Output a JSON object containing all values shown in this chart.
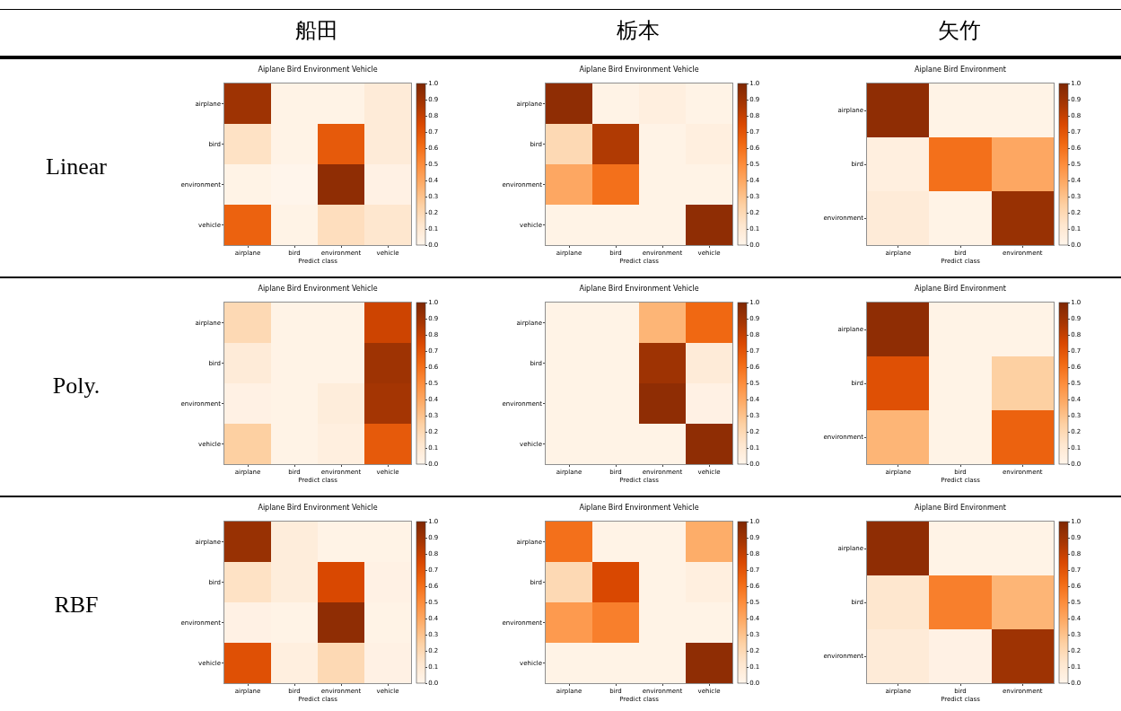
{
  "chart_data": [
    {
      "type": "other",
      "categories": [
        "船田",
        "栃本",
        "矢竹"
      ],
      "y_categories": [
        "Linear",
        "Poly.",
        "RBF"
      ]
    },
    {
      "type": "heatmap",
      "title": "Aiplane Bird Environment Vehicle",
      "xlabel": "Predict class",
      "categories": [
        "airplane",
        "bird",
        "environment",
        "vehicle"
      ],
      "y_categories": [
        "airplane",
        "bird",
        "environment",
        "vehicle"
      ],
      "cells": [
        [
          0.9,
          0.02,
          0.02,
          0.08
        ],
        [
          0.15,
          0.02,
          0.68,
          0.08
        ],
        [
          0.02,
          0.0,
          0.95,
          0.03
        ],
        [
          0.65,
          0.02,
          0.17,
          0.12
        ]
      ],
      "clim": [
        0,
        1
      ],
      "cticks": [
        {
          "value": 0,
          "label": "0.0"
        },
        {
          "value": 0.1,
          "label": "0.1"
        },
        {
          "value": 0.2,
          "label": "0.2"
        },
        {
          "value": 0.3,
          "label": "0.3"
        },
        {
          "value": 0.4,
          "label": "0.4"
        },
        {
          "value": 0.5,
          "label": "0.5"
        },
        {
          "value": 0.6,
          "label": "0.6"
        },
        {
          "value": 0.7,
          "label": "0.7"
        },
        {
          "value": 0.8,
          "label": "0.8"
        },
        {
          "value": 0.9,
          "label": "0.9"
        },
        {
          "value": 1,
          "label": "1.0"
        }
      ]
    },
    {
      "type": "heatmap",
      "title": "Aiplane Bird Environment Vehicle",
      "xlabel": "Predict class",
      "categories": [
        "airplane",
        "bird",
        "environment",
        "vehicle"
      ],
      "y_categories": [
        "airplane",
        "bird",
        "environment",
        "vehicle"
      ],
      "cells": [
        [
          0.95,
          0.02,
          0.05,
          0.02
        ],
        [
          0.2,
          0.85,
          0.02,
          0.05
        ],
        [
          0.4,
          0.6,
          0.02,
          0.02
        ],
        [
          0.02,
          0.02,
          0.02,
          0.95
        ]
      ],
      "clim": [
        0,
        1
      ],
      "cticks": [
        {
          "value": 0,
          "label": "0.0"
        },
        {
          "value": 0.1,
          "label": "0.1"
        },
        {
          "value": 0.2,
          "label": "0.2"
        },
        {
          "value": 0.3,
          "label": "0.3"
        },
        {
          "value": 0.4,
          "label": "0.4"
        },
        {
          "value": 0.5,
          "label": "0.5"
        },
        {
          "value": 0.6,
          "label": "0.6"
        },
        {
          "value": 0.7,
          "label": "0.7"
        },
        {
          "value": 0.8,
          "label": "0.8"
        },
        {
          "value": 0.9,
          "label": "0.9"
        },
        {
          "value": 1,
          "label": "1.0"
        }
      ]
    },
    {
      "type": "heatmap",
      "title": "Aiplane Bird Environment",
      "xlabel": "Predict class",
      "categories": [
        "airplane",
        "bird",
        "environment"
      ],
      "y_categories": [
        "airplane",
        "bird",
        "environment"
      ],
      "cells": [
        [
          0.95,
          0.02,
          0.02
        ],
        [
          0.05,
          0.6,
          0.4
        ],
        [
          0.08,
          0.02,
          0.92
        ]
      ],
      "clim": [
        0,
        1
      ],
      "cticks": [
        {
          "value": 0,
          "label": "0.0"
        },
        {
          "value": 0.1,
          "label": "0.1"
        },
        {
          "value": 0.2,
          "label": "0.2"
        },
        {
          "value": 0.3,
          "label": "0.3"
        },
        {
          "value": 0.4,
          "label": "0.4"
        },
        {
          "value": 0.5,
          "label": "0.5"
        },
        {
          "value": 0.6,
          "label": "0.6"
        },
        {
          "value": 0.7,
          "label": "0.7"
        },
        {
          "value": 0.8,
          "label": "0.8"
        },
        {
          "value": 0.9,
          "label": "0.9"
        },
        {
          "value": 1,
          "label": "1.0"
        }
      ]
    },
    {
      "type": "heatmap",
      "title": "Aiplane Bird Environment Vehicle",
      "xlabel": "Predict class",
      "categories": [
        "airplane",
        "bird",
        "environment",
        "vehicle"
      ],
      "y_categories": [
        "airplane",
        "bird",
        "environment",
        "vehicle"
      ],
      "cells": [
        [
          0.2,
          0.02,
          0.02,
          0.78
        ],
        [
          0.08,
          0.02,
          0.02,
          0.9
        ],
        [
          0.03,
          0.02,
          0.07,
          0.88
        ],
        [
          0.25,
          0.02,
          0.05,
          0.68
        ]
      ],
      "clim": [
        0,
        1
      ],
      "cticks": [
        {
          "value": 0,
          "label": "0.0"
        },
        {
          "value": 0.1,
          "label": "0.1"
        },
        {
          "value": 0.2,
          "label": "0.2"
        },
        {
          "value": 0.3,
          "label": "0.3"
        },
        {
          "value": 0.4,
          "label": "0.4"
        },
        {
          "value": 0.5,
          "label": "0.5"
        },
        {
          "value": 0.6,
          "label": "0.6"
        },
        {
          "value": 0.7,
          "label": "0.7"
        },
        {
          "value": 0.8,
          "label": "0.8"
        },
        {
          "value": 0.9,
          "label": "0.9"
        },
        {
          "value": 1,
          "label": "1.0"
        }
      ]
    },
    {
      "type": "heatmap",
      "title": "Aiplane Bird Environment Vehicle",
      "xlabel": "Predict class",
      "categories": [
        "airplane",
        "bird",
        "environment",
        "vehicle"
      ],
      "y_categories": [
        "airplane",
        "bird",
        "environment",
        "vehicle"
      ],
      "cells": [
        [
          0.02,
          0.02,
          0.35,
          0.63
        ],
        [
          0.02,
          0.02,
          0.9,
          0.08
        ],
        [
          0.02,
          0.02,
          0.95,
          0.03
        ],
        [
          0.02,
          0.02,
          0.02,
          0.95
        ]
      ],
      "clim": [
        0,
        1
      ],
      "cticks": [
        {
          "value": 0,
          "label": "0.0"
        },
        {
          "value": 0.1,
          "label": "0.1"
        },
        {
          "value": 0.2,
          "label": "0.2"
        },
        {
          "value": 0.3,
          "label": "0.3"
        },
        {
          "value": 0.4,
          "label": "0.4"
        },
        {
          "value": 0.5,
          "label": "0.5"
        },
        {
          "value": 0.6,
          "label": "0.6"
        },
        {
          "value": 0.7,
          "label": "0.7"
        },
        {
          "value": 0.8,
          "label": "0.8"
        },
        {
          "value": 0.9,
          "label": "0.9"
        },
        {
          "value": 1,
          "label": "1.0"
        }
      ]
    },
    {
      "type": "heatmap",
      "title": "Aiplane Bird Environment",
      "xlabel": "Predict class",
      "categories": [
        "airplane",
        "bird",
        "environment"
      ],
      "y_categories": [
        "airplane",
        "bird",
        "environment"
      ],
      "cells": [
        [
          0.95,
          0.02,
          0.02
        ],
        [
          0.72,
          0.02,
          0.25
        ],
        [
          0.35,
          0.02,
          0.65
        ]
      ],
      "clim": [
        0,
        1
      ],
      "cticks": [
        {
          "value": 0,
          "label": "0.0"
        },
        {
          "value": 0.1,
          "label": "0.1"
        },
        {
          "value": 0.2,
          "label": "0.2"
        },
        {
          "value": 0.3,
          "label": "0.3"
        },
        {
          "value": 0.4,
          "label": "0.4"
        },
        {
          "value": 0.5,
          "label": "0.5"
        },
        {
          "value": 0.6,
          "label": "0.6"
        },
        {
          "value": 0.7,
          "label": "0.7"
        },
        {
          "value": 0.8,
          "label": "0.8"
        },
        {
          "value": 0.9,
          "label": "0.9"
        },
        {
          "value": 1,
          "label": "1.0"
        }
      ]
    },
    {
      "type": "heatmap",
      "title": "Aiplane Bird Environment Vehicle",
      "xlabel": "Predict class",
      "categories": [
        "airplane",
        "bird",
        "environment",
        "vehicle"
      ],
      "y_categories": [
        "airplane",
        "bird",
        "environment",
        "vehicle"
      ],
      "cells": [
        [
          0.92,
          0.07,
          0.02,
          0.02
        ],
        [
          0.15,
          0.07,
          0.75,
          0.03
        ],
        [
          0.03,
          0.02,
          0.95,
          0.02
        ],
        [
          0.72,
          0.05,
          0.2,
          0.03
        ]
      ],
      "clim": [
        0,
        1
      ],
      "cticks": [
        {
          "value": 0,
          "label": "0.0"
        },
        {
          "value": 0.1,
          "label": "0.1"
        },
        {
          "value": 0.2,
          "label": "0.2"
        },
        {
          "value": 0.3,
          "label": "0.3"
        },
        {
          "value": 0.4,
          "label": "0.4"
        },
        {
          "value": 0.5,
          "label": "0.5"
        },
        {
          "value": 0.6,
          "label": "0.6"
        },
        {
          "value": 0.7,
          "label": "0.7"
        },
        {
          "value": 0.8,
          "label": "0.8"
        },
        {
          "value": 0.9,
          "label": "0.9"
        },
        {
          "value": 1,
          "label": "1.0"
        }
      ]
    },
    {
      "type": "heatmap",
      "title": "Aiplane Bird Environment Vehicle",
      "xlabel": "Predict class",
      "categories": [
        "airplane",
        "bird",
        "environment",
        "vehicle"
      ],
      "y_categories": [
        "airplane",
        "bird",
        "environment",
        "vehicle"
      ],
      "cells": [
        [
          0.6,
          0.02,
          0.02,
          0.38
        ],
        [
          0.2,
          0.75,
          0.02,
          0.05
        ],
        [
          0.45,
          0.55,
          0.02,
          0.02
        ],
        [
          0.02,
          0.02,
          0.02,
          0.95
        ]
      ],
      "clim": [
        0,
        1
      ],
      "cticks": [
        {
          "value": 0,
          "label": "0.0"
        },
        {
          "value": 0.1,
          "label": "0.1"
        },
        {
          "value": 0.2,
          "label": "0.2"
        },
        {
          "value": 0.3,
          "label": "0.3"
        },
        {
          "value": 0.4,
          "label": "0.4"
        },
        {
          "value": 0.5,
          "label": "0.5"
        },
        {
          "value": 0.6,
          "label": "0.6"
        },
        {
          "value": 0.7,
          "label": "0.7"
        },
        {
          "value": 0.8,
          "label": "0.8"
        },
        {
          "value": 0.9,
          "label": "0.9"
        },
        {
          "value": 1,
          "label": "1.0"
        }
      ]
    },
    {
      "type": "heatmap",
      "title": "Aiplane Bird Environment",
      "xlabel": "Predict class",
      "categories": [
        "airplane",
        "bird",
        "environment"
      ],
      "y_categories": [
        "airplane",
        "bird",
        "environment"
      ],
      "cells": [
        [
          0.95,
          0.02,
          0.02
        ],
        [
          0.12,
          0.55,
          0.35
        ],
        [
          0.08,
          0.03,
          0.9
        ]
      ],
      "clim": [
        0,
        1
      ],
      "cticks": [
        {
          "value": 0,
          "label": "0.0"
        },
        {
          "value": 0.1,
          "label": "0.1"
        },
        {
          "value": 0.2,
          "label": "0.2"
        },
        {
          "value": 0.3,
          "label": "0.3"
        },
        {
          "value": 0.4,
          "label": "0.4"
        },
        {
          "value": 0.5,
          "label": "0.5"
        },
        {
          "value": 0.6,
          "label": "0.6"
        },
        {
          "value": 0.7,
          "label": "0.7"
        },
        {
          "value": 0.8,
          "label": "0.8"
        },
        {
          "value": 0.9,
          "label": "0.9"
        },
        {
          "value": 1,
          "label": "1.0"
        }
      ]
    }
  ]
}
